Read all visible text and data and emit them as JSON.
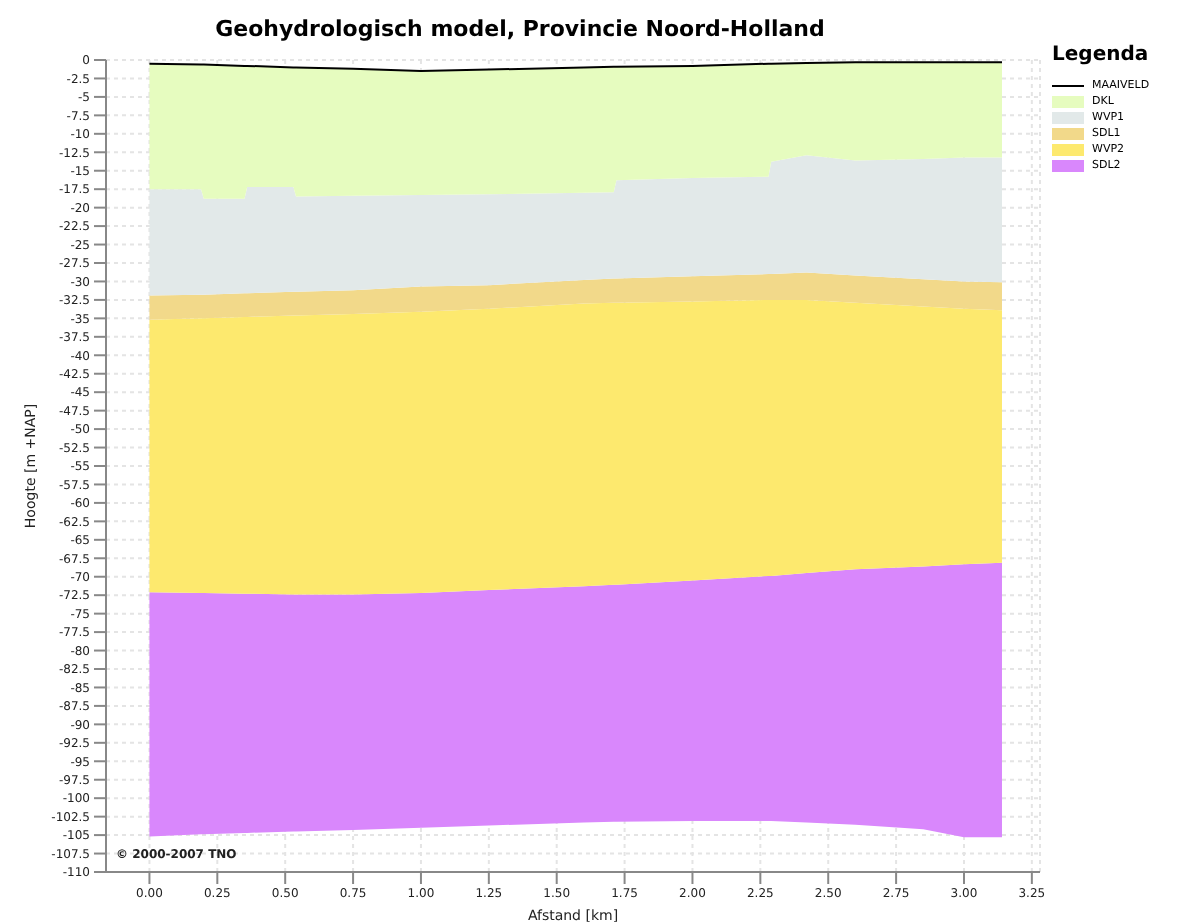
{
  "chart_data": {
    "type": "area",
    "title": "Geohydrologisch model, Provincie Noord-Holland",
    "xlabel": "Afstand [km]",
    "ylabel": "Hoogte [m +NAP]",
    "legend_title": "Legenda",
    "annotations": [
      "© 2000-2007 TNO"
    ],
    "x": [
      0,
      0.19,
      0.2,
      0.35,
      0.36,
      0.53,
      0.54,
      0.75,
      1.0,
      1.25,
      1.6,
      1.71,
      1.72,
      2.0,
      2.28,
      2.29,
      2.42,
      2.6,
      2.85,
      3.0,
      3.14
    ],
    "series": [
      {
        "name": "MAAIVELD",
        "type": "line",
        "color": "#000000",
        "values": [
          -0.5,
          -0.6,
          -0.6,
          -0.8,
          -0.8,
          -1,
          -1,
          -1.2,
          -1.5,
          -1.3,
          -1,
          -0.9,
          -0.9,
          -0.8,
          -0.5,
          -0.5,
          -0.4,
          -0.3,
          -0.3,
          -0.3,
          -0.3
        ]
      },
      {
        "name": "DKL",
        "color": "#e6fcbf",
        "values": [
          -17.5,
          -17.5,
          -18.8,
          -18.8,
          -17.2,
          -17.2,
          -18.5,
          -18.4,
          -18.3,
          -18.2,
          -18,
          -17.9,
          -16.3,
          -16,
          -15.8,
          -13.8,
          -12.9,
          -13.6,
          -13.4,
          -13.2,
          -13.2
        ]
      },
      {
        "name": "WVP1",
        "color": "#e2e9e9",
        "values": [
          -31.9,
          -31.8,
          -31.8,
          -31.6,
          -31.6,
          -31.4,
          -31.4,
          -31.2,
          -30.7,
          -30.5,
          -29.8,
          -29.6,
          -29.6,
          -29.3,
          -29,
          -29,
          -28.8,
          -29.2,
          -29.7,
          -30,
          -30.1
        ]
      },
      {
        "name": "SDL1",
        "color": "#f2d98a",
        "values": [
          -35.2,
          -35,
          -35,
          -34.8,
          -34.8,
          -34.6,
          -34.6,
          -34.4,
          -34.1,
          -33.7,
          -33,
          -32.9,
          -32.9,
          -32.7,
          -32.5,
          -32.5,
          -32.5,
          -32.9,
          -33.4,
          -33.7,
          -33.9
        ]
      },
      {
        "name": "WVP2",
        "color": "#fde96e",
        "values": [
          -72.1,
          -72.2,
          -72.2,
          -72.3,
          -72.3,
          -72.4,
          -72.4,
          -72.4,
          -72.2,
          -71.8,
          -71.3,
          -71.1,
          -71.1,
          -70.5,
          -69.9,
          -69.9,
          -69.5,
          -69,
          -68.6,
          -68.3,
          -68.1
        ]
      },
      {
        "name": "SDL2",
        "color": "#d987fc",
        "values": [
          -105.2,
          -104.9,
          -104.9,
          -104.7,
          -104.7,
          -104.5,
          -104.5,
          -104.3,
          -104,
          -103.7,
          -103.3,
          -103.2,
          -103.2,
          -103.1,
          -103.1,
          -103.1,
          -103.3,
          -103.6,
          -104.2,
          -105.3,
          -105.3
        ]
      }
    ],
    "xlim": [
      -0.16,
      3.28
    ],
    "xticks": [
      {
        "value": 0,
        "label": "0.00"
      },
      {
        "value": 0.25,
        "label": "0.25"
      },
      {
        "value": 0.5,
        "label": "0.50"
      },
      {
        "value": 0.75,
        "label": "0.75"
      },
      {
        "value": 1,
        "label": "1.00"
      },
      {
        "value": 1.25,
        "label": "1.25"
      },
      {
        "value": 1.5,
        "label": "1.50"
      },
      {
        "value": 1.75,
        "label": "1.75"
      },
      {
        "value": 2,
        "label": "2.00"
      },
      {
        "value": 2.25,
        "label": "2.25"
      },
      {
        "value": 2.5,
        "label": "2.50"
      },
      {
        "value": 2.75,
        "label": "2.75"
      },
      {
        "value": 3,
        "label": "3.00"
      },
      {
        "value": 3.25,
        "label": "3.25"
      }
    ],
    "ylim": [
      -110,
      0
    ],
    "yticks": [
      0,
      -2.5,
      -5,
      -7.5,
      -10,
      -12.5,
      -15,
      -17.5,
      -20,
      -22.5,
      -25,
      -27.5,
      -30,
      -32.5,
      -35,
      -37.5,
      -40,
      -42.5,
      -45,
      -47.5,
      -50,
      -52.5,
      -55,
      -57.5,
      -60,
      -62.5,
      -65,
      -67.5,
      -70,
      -72.5,
      -75,
      -77.5,
      -80,
      -82.5,
      -85,
      -87.5,
      -90,
      -92.5,
      -95,
      -97.5,
      -100,
      -102.5,
      -105,
      -107.5,
      -110
    ],
    "grid": true,
    "legend": "right",
    "marker": "none"
  }
}
